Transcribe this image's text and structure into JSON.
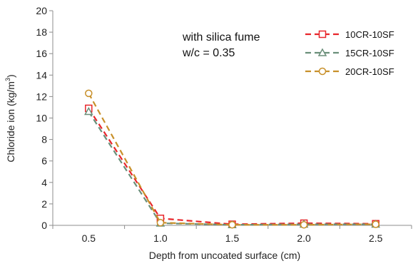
{
  "chart_data": {
    "type": "line",
    "xlabel": "Depth from uncoated surface (cm)",
    "ylabel_main": "Chloride ion (kg/m",
    "ylabel_sup": "3",
    "ylabel_end": ")",
    "xlim": [
      0.25,
      2.75
    ],
    "ylim": [
      0,
      20
    ],
    "x_ticks": [
      0.5,
      1.0,
      1.5,
      2.0,
      2.5
    ],
    "x_tick_labels": [
      "0.5",
      "1.0",
      "1.5",
      "2.0",
      "2.5"
    ],
    "y_ticks": [
      0,
      2,
      4,
      6,
      8,
      10,
      12,
      14,
      16,
      18,
      20
    ],
    "y_tick_labels": [
      "0",
      "2",
      "4",
      "6",
      "8",
      "10",
      "12",
      "14",
      "16",
      "18",
      "20"
    ],
    "grid": false,
    "legend_position": "top-right",
    "annotations": [
      "with silica fume",
      "w/c = 0.35"
    ],
    "x": [
      0.5,
      1.0,
      1.5,
      2.0,
      2.5
    ],
    "series": [
      {
        "name": "10CR-10SF",
        "color": "#e8262b",
        "marker": "square",
        "values": [
          10.9,
          0.65,
          0.1,
          0.2,
          0.15
        ]
      },
      {
        "name": "15CR-10SF",
        "color": "#6b8f7a",
        "marker": "triangle",
        "values": [
          10.6,
          0.2,
          0.05,
          0.1,
          0.1
        ]
      },
      {
        "name": "20CR-10SF",
        "color": "#c8902a",
        "marker": "circle",
        "values": [
          12.3,
          0.25,
          0.05,
          0.05,
          0.1
        ]
      }
    ]
  }
}
